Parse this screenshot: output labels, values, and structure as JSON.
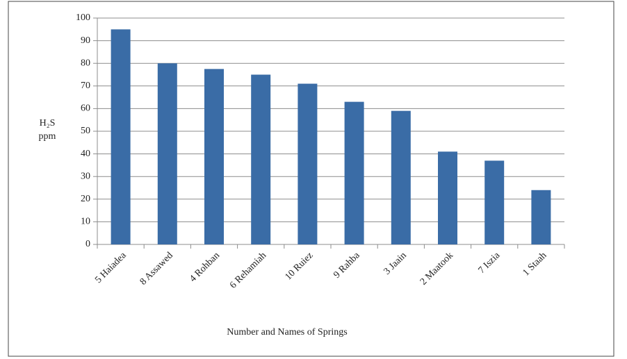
{
  "chart_data": {
    "type": "bar",
    "ylabel": [
      "H₂S",
      "ppm"
    ],
    "xlabel": "Number and Names of Springs",
    "categories": [
      "5 Haiadea",
      "8 Assawed",
      "4 Rohban",
      "6 Rehamiah",
      "10 Ruiez",
      "9 Rahba",
      "3 Jaain",
      "2 Maatook",
      "7 Iszia",
      "1 Staah"
    ],
    "values": [
      95,
      80,
      77.5,
      75,
      71,
      63,
      59,
      41,
      37,
      24
    ],
    "color": "#3a6ca6",
    "ylim": [
      0,
      100
    ],
    "yticks": [
      0,
      10,
      20,
      30,
      40,
      50,
      60,
      70,
      80,
      90,
      100
    ],
    "grid": true
  }
}
